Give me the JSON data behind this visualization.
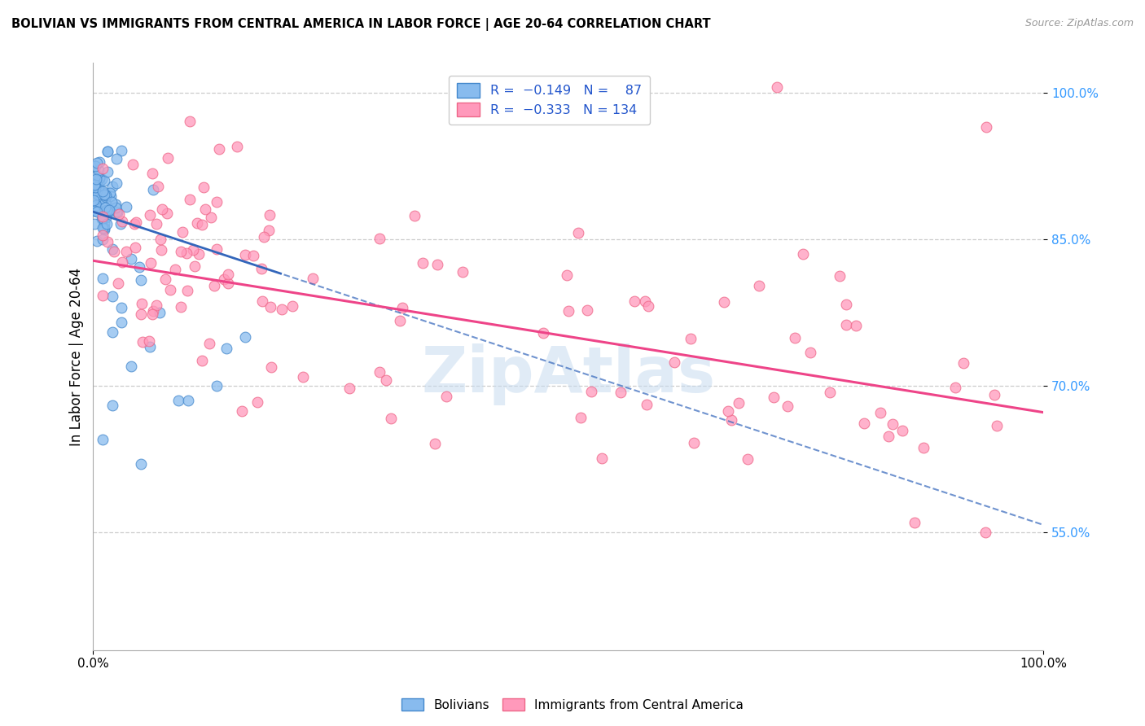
{
  "title": "BOLIVIAN VS IMMIGRANTS FROM CENTRAL AMERICA IN LABOR FORCE | AGE 20-64 CORRELATION CHART",
  "source": "Source: ZipAtlas.com",
  "ylabel": "In Labor Force | Age 20-64",
  "xlim": [
    0.0,
    1.0
  ],
  "ylim": [
    0.43,
    1.03
  ],
  "yticks": [
    0.55,
    0.7,
    0.85,
    1.0
  ],
  "ytick_labels": [
    "55.0%",
    "70.0%",
    "85.0%",
    "100.0%"
  ],
  "blue_color": "#88bbee",
  "blue_edge_color": "#4488cc",
  "pink_color": "#ff99bb",
  "pink_edge_color": "#ee6688",
  "blue_line_color": "#3366bb",
  "pink_line_color": "#ee4488",
  "watermark": "ZipAtlas",
  "R_blue": -0.149,
  "N_blue": 87,
  "R_pink": -0.333,
  "N_pink": 134,
  "blue_intercept": 0.878,
  "blue_slope": -0.32,
  "pink_intercept": 0.828,
  "pink_slope": -0.155,
  "blue_seed": 42,
  "pink_seed": 77
}
